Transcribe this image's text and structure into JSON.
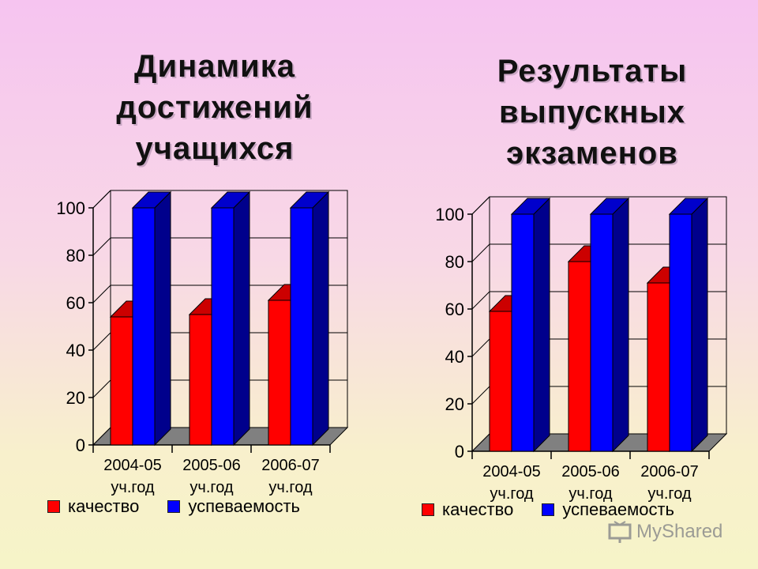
{
  "titles": {
    "left": "Динамика достижений учащихся",
    "right": "Результаты выпускных экзаменов"
  },
  "legend": {
    "quality_label": "качество",
    "progress_label": "успеваемость"
  },
  "colors": {
    "quality": "#ff0000",
    "progress": "#0000ff",
    "floor": "#808080"
  },
  "watermark": "MyShared",
  "chart_data": [
    {
      "type": "bar",
      "title": "Динамика достижений учащихся",
      "categories": [
        "2004-05 уч.год",
        "2005-06 уч.год",
        "2006-07 уч.год"
      ],
      "series": [
        {
          "name": "качество",
          "values": [
            54,
            55,
            61
          ]
        },
        {
          "name": "успеваемость",
          "values": [
            100,
            100,
            100
          ]
        }
      ],
      "yticks": [
        0,
        20,
        40,
        60,
        80,
        100
      ],
      "ylim": [
        0,
        100
      ],
      "grid": true,
      "legend_position": "bottom"
    },
    {
      "type": "bar",
      "title": "Результаты выпускных экзаменов",
      "categories": [
        "2004-05 уч.год",
        "2005-06 уч.год",
        "2006-07 уч.год"
      ],
      "series": [
        {
          "name": "качество",
          "values": [
            59,
            80,
            71
          ]
        },
        {
          "name": "успеваемость",
          "values": [
            100,
            100,
            100
          ]
        }
      ],
      "yticks": [
        0,
        20,
        40,
        60,
        80,
        100
      ],
      "ylim": [
        0,
        100
      ],
      "grid": true,
      "legend_position": "bottom"
    }
  ]
}
